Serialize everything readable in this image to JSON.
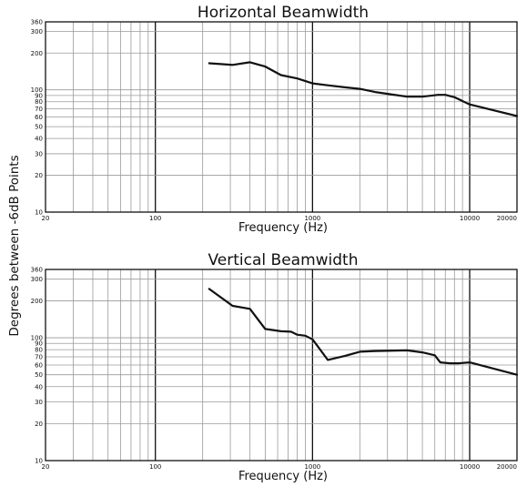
{
  "y_axis_label": "Degrees between -6dB Points",
  "chart_data": [
    {
      "type": "line",
      "title": "Horizontal Beamwidth",
      "xlabel": "Frequency (Hz)",
      "ylabel": "Degrees between -6dB Points",
      "xscale": "log",
      "yscale": "log",
      "xlim": [
        20,
        20000
      ],
      "ylim": [
        10,
        360
      ],
      "x_ticks": [
        20,
        100,
        1000,
        10000,
        20000
      ],
      "y_ticks": [
        10,
        20,
        30,
        40,
        50,
        60,
        70,
        80,
        90,
        100,
        200,
        300,
        360
      ],
      "grid": true,
      "series": [
        {
          "x": [
            220,
            310,
            400,
            500,
            630,
            800,
            1000,
            1250,
            1600,
            2000,
            2500,
            3150,
            4000,
            5000,
            6300,
            7000,
            8000,
            10000,
            20000
          ],
          "y": [
            165,
            160,
            168,
            155,
            132,
            124,
            113,
            109,
            105,
            102,
            96,
            92,
            88,
            88,
            91,
            91,
            87,
            76,
            61
          ]
        }
      ]
    },
    {
      "type": "line",
      "title": "Vertical Beamwidth",
      "xlabel": "Frequency (Hz)",
      "ylabel": "Degrees between -6dB Points",
      "xscale": "log",
      "yscale": "log",
      "xlim": [
        20,
        20000
      ],
      "ylim": [
        10,
        360
      ],
      "x_ticks": [
        20,
        100,
        1000,
        10000,
        20000
      ],
      "y_ticks": [
        10,
        20,
        30,
        40,
        50,
        60,
        70,
        80,
        90,
        100,
        200,
        300,
        360
      ],
      "grid": true,
      "series": [
        {
          "x": [
            220,
            310,
            400,
            500,
            630,
            730,
            800,
            900,
            1000,
            1250,
            1600,
            2000,
            2500,
            4000,
            5000,
            6000,
            6500,
            7500,
            8500,
            10000,
            20000
          ],
          "y": [
            250,
            182,
            172,
            118,
            113,
            112,
            106,
            104,
            97,
            66,
            71,
            77,
            78,
            79,
            76,
            72,
            63,
            62,
            62,
            63,
            50
          ]
        }
      ]
    }
  ]
}
